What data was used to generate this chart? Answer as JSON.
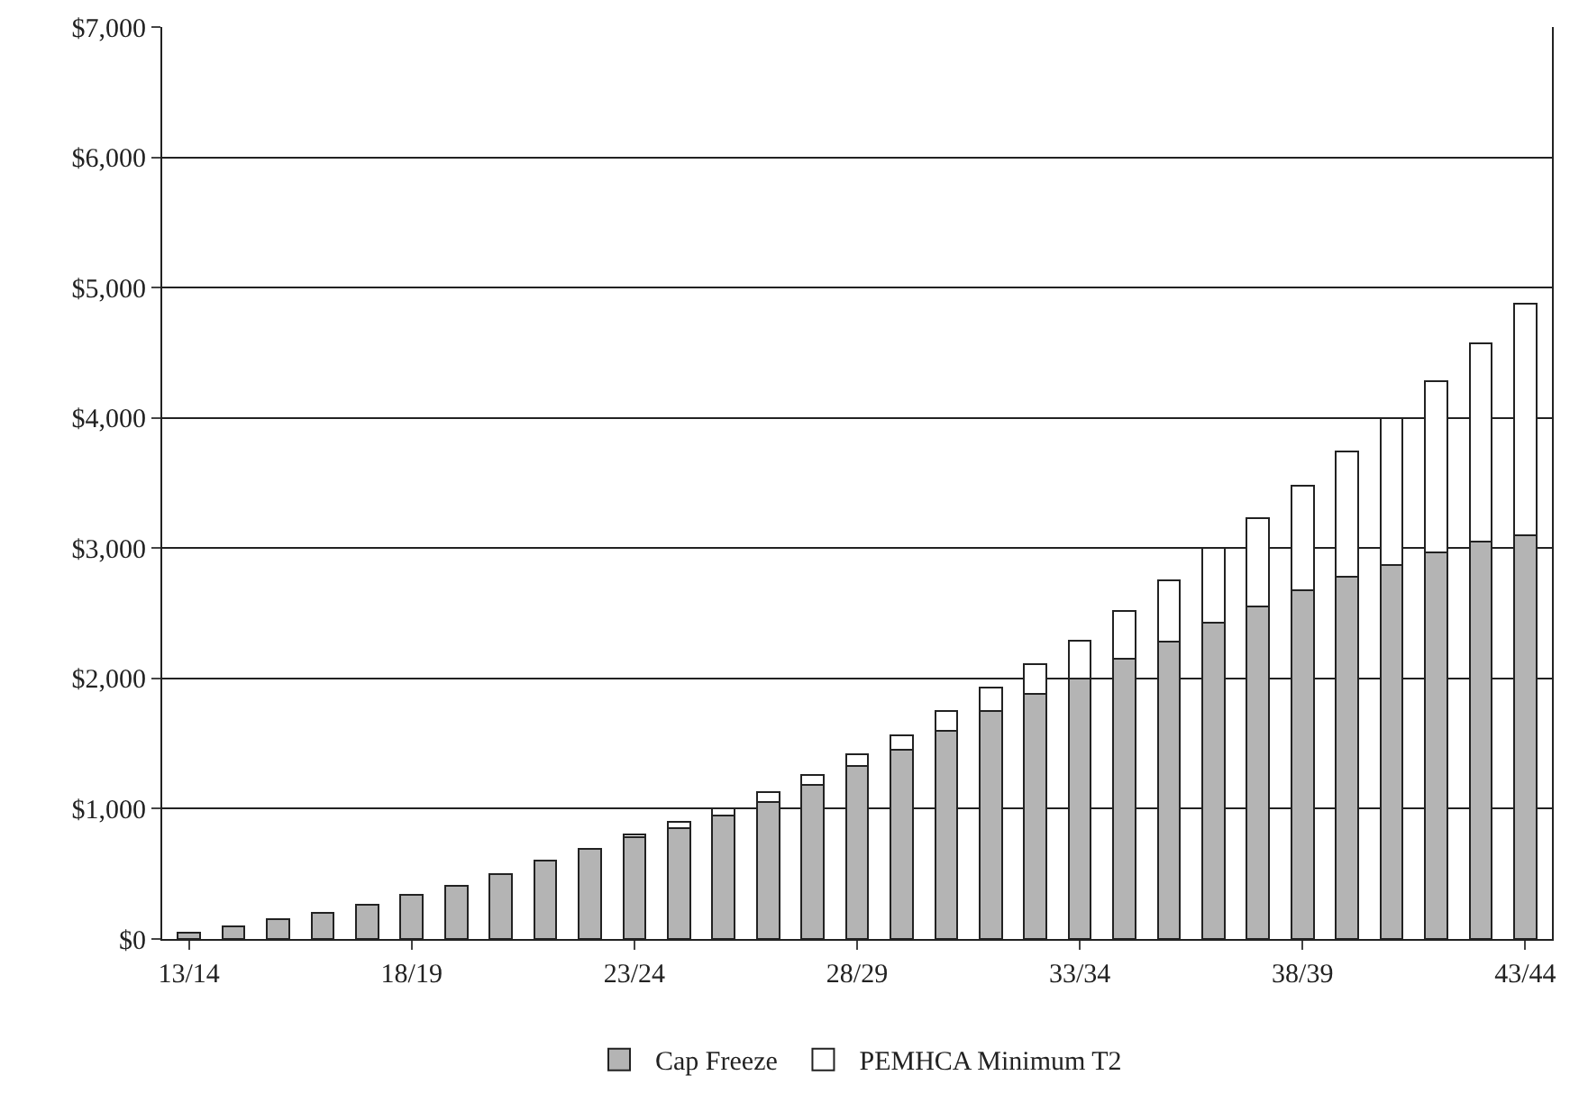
{
  "chart_data": {
    "type": "bar",
    "stacked": true,
    "categories": [
      "13/14",
      null,
      null,
      null,
      null,
      "18/19",
      null,
      null,
      null,
      null,
      "23/24",
      null,
      null,
      null,
      null,
      "28/29",
      null,
      null,
      null,
      null,
      "33/34",
      null,
      null,
      null,
      null,
      "38/39",
      null,
      null,
      null,
      null,
      "43/44"
    ],
    "series": [
      {
        "name": "Cap Freeze",
        "color": "#b4b4b4",
        "values": [
          50,
          100,
          150,
          200,
          260,
          340,
          410,
          500,
          600,
          690,
          780,
          850,
          950,
          1050,
          1180,
          1330,
          1450,
          1600,
          1750,
          1880,
          2000,
          2150,
          2280,
          2430,
          2550,
          2680,
          2780,
          2870,
          2970,
          3050,
          3100
        ]
      },
      {
        "name": "PEMHCA Minimum T2",
        "color": "#ffffff",
        "values": [
          null,
          null,
          null,
          null,
          null,
          null,
          null,
          null,
          null,
          null,
          20,
          50,
          50,
          80,
          80,
          90,
          110,
          150,
          180,
          230,
          290,
          370,
          470,
          570,
          680,
          800,
          960,
          1130,
          1310,
          1520,
          1780
        ]
      }
    ],
    "ylim": [
      0,
      7000
    ],
    "yticks": [
      {
        "value": 0,
        "label": "$0"
      },
      {
        "value": 1000,
        "label": "$1,000"
      },
      {
        "value": 2000,
        "label": "$2,000"
      },
      {
        "value": 3000,
        "label": "$3,000"
      },
      {
        "value": 4000,
        "label": "$4,000"
      },
      {
        "value": 5000,
        "label": "$5,000"
      },
      {
        "value": 6000,
        "label": "$6,000"
      },
      {
        "value": 7000,
        "label": "$7,000"
      }
    ],
    "grid": "y",
    "legend": "bottom"
  }
}
